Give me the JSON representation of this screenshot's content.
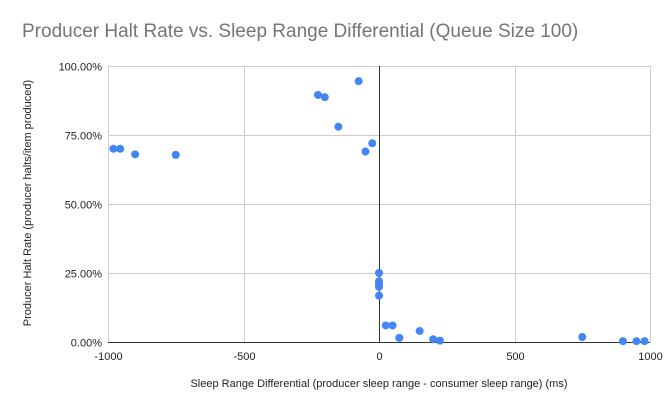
{
  "chart_data": {
    "type": "scatter",
    "title": "Producer Halt Rate vs. Sleep Range Differential (Queue Size 100)",
    "xlabel": "Sleep Range Differential (producer sleep range - consumer sleep range) (ms)",
    "ylabel": "Producer Halt Rate (producer halts/item produced)",
    "xlim": [
      -1000,
      1000
    ],
    "ylim": [
      0,
      1
    ],
    "x_ticks": [
      -1000,
      -500,
      0,
      500,
      1000
    ],
    "x_tick_labels": [
      "-1000",
      "-500",
      "0",
      "500",
      "1000"
    ],
    "y_ticks": [
      0,
      0.25,
      0.5,
      0.75,
      1
    ],
    "y_tick_labels": [
      "0.00%",
      "25.00%",
      "50.00%",
      "75.00%",
      "100.00%"
    ],
    "grid": true,
    "legend": "none",
    "color": "#4285f4",
    "series": [
      {
        "points": [
          {
            "x": -980,
            "y": 0.7
          },
          {
            "x": -955,
            "y": 0.7
          },
          {
            "x": -900,
            "y": 0.68
          },
          {
            "x": -750,
            "y": 0.678
          },
          {
            "x": -225,
            "y": 0.895
          },
          {
            "x": -200,
            "y": 0.887
          },
          {
            "x": -150,
            "y": 0.78
          },
          {
            "x": -75,
            "y": 0.945
          },
          {
            "x": -50,
            "y": 0.69
          },
          {
            "x": -25,
            "y": 0.72
          },
          {
            "x": 0,
            "y": 0.25
          },
          {
            "x": 0,
            "y": 0.22
          },
          {
            "x": 0,
            "y": 0.21
          },
          {
            "x": 0,
            "y": 0.2
          },
          {
            "x": 0,
            "y": 0.168
          },
          {
            "x": 25,
            "y": 0.06
          },
          {
            "x": 50,
            "y": 0.06
          },
          {
            "x": 75,
            "y": 0.015
          },
          {
            "x": 150,
            "y": 0.04
          },
          {
            "x": 200,
            "y": 0.01
          },
          {
            "x": 225,
            "y": 0.005
          },
          {
            "x": 750,
            "y": 0.018
          },
          {
            "x": 900,
            "y": 0.003
          },
          {
            "x": 950,
            "y": 0.003
          },
          {
            "x": 980,
            "y": 0.003
          }
        ]
      }
    ]
  }
}
